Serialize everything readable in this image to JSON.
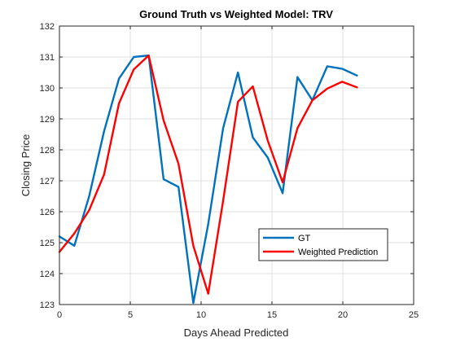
{
  "chart_data": {
    "type": "line",
    "title": "Ground Truth vs Weighted Model: TRV",
    "xlabel": "Days Ahead Predicted",
    "ylabel": "Closing Price",
    "xlim": [
      0,
      25
    ],
    "ylim": [
      123,
      132
    ],
    "xticks": [
      0,
      5,
      10,
      15,
      20,
      25
    ],
    "yticks": [
      123,
      124,
      125,
      126,
      127,
      128,
      129,
      130,
      131,
      132
    ],
    "grid": true,
    "legend_position": "bottom-right",
    "series": [
      {
        "name": "GT",
        "color": "#0072BD",
        "x": [
          0,
          1.05,
          2.1,
          3.15,
          4.2,
          5.25,
          6.3,
          7.35,
          8.4,
          9.45,
          10.5,
          11.55,
          12.6,
          13.65,
          14.7,
          15.75,
          16.8,
          17.85,
          18.9,
          19.95,
          21
        ],
        "y": [
          125.2,
          124.9,
          126.5,
          128.6,
          130.3,
          131.0,
          131.05,
          127.05,
          126.8,
          123.05,
          125.6,
          128.7,
          130.5,
          128.4,
          127.75,
          126.6,
          130.35,
          129.6,
          130.7,
          130.62,
          130.4
        ]
      },
      {
        "name": "Weighted Prediction",
        "color": "#FF0000",
        "x": [
          0,
          1.05,
          2.1,
          3.15,
          4.2,
          5.25,
          6.3,
          7.35,
          8.4,
          9.45,
          10.5,
          11.55,
          12.6,
          13.65,
          14.7,
          15.75,
          16.8,
          17.85,
          18.9,
          19.95,
          21
        ],
        "y": [
          124.7,
          125.3,
          126.05,
          127.2,
          129.5,
          130.6,
          131.05,
          128.95,
          127.55,
          124.9,
          123.35,
          126.35,
          129.55,
          130.05,
          128.3,
          126.95,
          128.7,
          129.6,
          129.98,
          130.2,
          130.02
        ]
      }
    ]
  }
}
